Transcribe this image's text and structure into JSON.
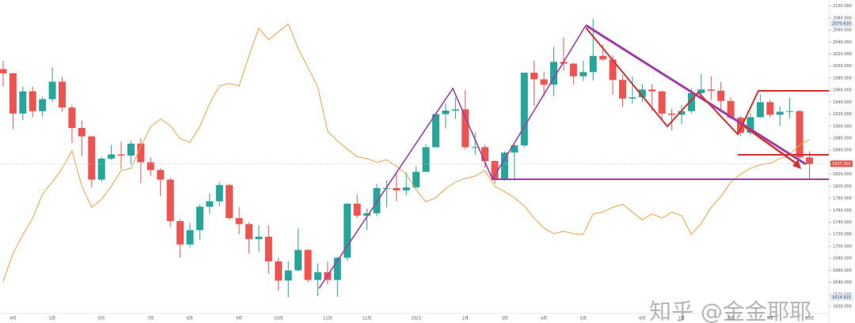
{
  "chart_data": {
    "type": "candlestick",
    "categories": [
      null,
      "4月",
      null,
      null,
      null,
      "5月",
      null,
      null,
      null,
      null,
      "6月",
      null,
      null,
      null,
      null,
      "7月",
      null,
      null,
      null,
      "8月",
      null,
      null,
      null,
      null,
      "9月",
      null,
      null,
      null,
      "10月",
      null,
      null,
      null,
      null,
      "11月",
      null,
      null,
      null,
      "12月",
      null,
      null,
      null,
      null,
      "2023",
      null,
      null,
      null,
      null,
      "2月",
      null,
      null,
      null,
      "3月",
      null,
      null,
      null,
      "4月",
      null,
      null,
      null,
      "5月",
      null,
      null,
      null,
      null,
      null,
      "6月",
      null,
      null,
      null,
      "7月",
      null,
      null,
      null,
      null,
      "8月",
      null,
      null,
      null,
      "9月",
      null,
      null,
      null,
      "10月"
    ],
    "open": [
      1995,
      1988,
      1921,
      1958,
      1925,
      1945,
      1974,
      1931,
      1897,
      1883,
      1811,
      1846,
      1853,
      1851,
      1871,
      1840,
      1827,
      1811,
      1742,
      1703,
      1727,
      1766,
      1775,
      1802,
      1747,
      1737,
      1712,
      1716,
      1675,
      1643,
      1660,
      1694,
      1644,
      1657,
      1644,
      1681,
      1771,
      1751,
      1755,
      1797,
      1797,
      1793,
      1798,
      1824,
      1865,
      1920,
      1926,
      1928,
      1865,
      1865,
      1842,
      1811,
      1856,
      1868,
      1989,
      1978,
      1969,
      2007,
      2004,
      1983,
      1990,
      2017,
      2011,
      1977,
      1946,
      1948,
      1961,
      1958,
      1921,
      1919,
      1925,
      1955,
      1961,
      1959,
      1942,
      1914,
      1889,
      1915,
      1940,
      1919,
      1924,
      1925,
      1848
    ],
    "high": [
      2009,
      1989,
      1966,
      1966,
      1949,
      1998,
      1982,
      1936,
      1909,
      1884,
      1849,
      1869,
      1874,
      1876,
      1880,
      1848,
      1830,
      1814,
      1745,
      1739,
      1770,
      1788,
      1807,
      1804,
      1765,
      1740,
      1735,
      1735,
      1681,
      1675,
      1730,
      1695,
      1672,
      1675,
      1683,
      1772,
      1786,
      1763,
      1804,
      1810,
      1824,
      1823,
      1833,
      1870,
      1922,
      1938,
      1948,
      1960,
      1890,
      1869,
      1843,
      1858,
      1870,
      1989,
      2009,
      1990,
      2032,
      2048,
      2006,
      2009,
      2079,
      2036,
      2018,
      1985,
      1983,
      1970,
      1970,
      1959,
      1929,
      1935,
      1963,
      1987,
      1983,
      1974,
      1948,
      1917,
      1922,
      1953,
      1944,
      1933,
      1947,
      1927,
      1858
    ],
    "low": [
      1966,
      1895,
      1910,
      1915,
      1916,
      1940,
      1924,
      1872,
      1850,
      1798,
      1807,
      1844,
      1828,
      1836,
      1805,
      1817,
      1784,
      1732,
      1681,
      1698,
      1711,
      1754,
      1767,
      1745,
      1720,
      1688,
      1691,
      1654,
      1626,
      1615,
      1659,
      1640,
      1617,
      1637,
      1616,
      1676,
      1747,
      1727,
      1750,
      1765,
      1775,
      1785,
      1797,
      1826,
      1867,
      1896,
      1912,
      1861,
      1852,
      1830,
      1804,
      1809,
      1809,
      1865,
      1934,
      1949,
      1950,
      1992,
      1969,
      1975,
      1976,
      2008,
      1952,
      1932,
      1938,
      1940,
      1925,
      1910,
      1893,
      1903,
      1921,
      1951,
      1943,
      1928,
      1911,
      1884,
      1885,
      1914,
      1915,
      1901,
      1913,
      1846,
      1810
    ],
    "close": [
      1988,
      1921,
      1958,
      1925,
      1945,
      1974,
      1931,
      1897,
      1883,
      1811,
      1846,
      1853,
      1851,
      1871,
      1840,
      1827,
      1811,
      1742,
      1703,
      1727,
      1766,
      1775,
      1802,
      1747,
      1737,
      1712,
      1716,
      1675,
      1643,
      1660,
      1694,
      1644,
      1657,
      1644,
      1681,
      1771,
      1751,
      1755,
      1797,
      1797,
      1793,
      1798,
      1824,
      1865,
      1920,
      1926,
      1928,
      1865,
      1865,
      1842,
      1811,
      1856,
      1868,
      1989,
      1978,
      1969,
      2007,
      2004,
      1983,
      1990,
      2017,
      2011,
      1977,
      1946,
      1948,
      1961,
      1958,
      1921,
      1919,
      1925,
      1955,
      1961,
      1959,
      1942,
      1914,
      1889,
      1915,
      1940,
      1919,
      1924,
      1925,
      1848,
      1837
    ],
    "up_color": "#26a69a",
    "down_color": "#ef5350",
    "overlay": {
      "color": "#f0a040",
      "values": [
        1642,
        1688,
        1719,
        1747,
        1787,
        1807,
        1830,
        1859,
        1800,
        1765,
        1778,
        1800,
        1826,
        1830,
        1866,
        1899,
        1912,
        1901,
        1879,
        1873,
        1899,
        1938,
        1967,
        1971,
        1967,
        2017,
        2063,
        2044,
        2057,
        2070,
        2030,
        1998,
        1965,
        1892,
        1875,
        1862,
        1849,
        1846,
        1840,
        1844,
        1833,
        1820,
        1794,
        1774,
        1781,
        1796,
        1807,
        1813,
        1817,
        1826,
        1800,
        1791,
        1781,
        1767,
        1747,
        1730,
        1721,
        1725,
        1721,
        1720,
        1754,
        1757,
        1765,
        1770,
        1757,
        1744,
        1754,
        1747,
        1757,
        1751,
        1720,
        1738,
        1765,
        1783,
        1807,
        1820,
        1830,
        1836,
        1838,
        1846,
        1853,
        1869,
        1878
      ]
    },
    "ylim": [
      1600,
      2110
    ],
    "yticks": [
      {
        "value": 1600,
        "label": "1600.000"
      },
      {
        "value": 1620,
        "label": "1620.000"
      },
      {
        "value": 1640,
        "label": "1640.000"
      },
      {
        "value": 1660,
        "label": "1660.000"
      },
      {
        "value": 1680,
        "label": "1680.000"
      },
      {
        "value": 1700,
        "label": "1700.000"
      },
      {
        "value": 1720,
        "label": "1720.000"
      },
      {
        "value": 1740,
        "label": "1740.000"
      },
      {
        "value": 1760,
        "label": "1760.000"
      },
      {
        "value": 1780,
        "label": "1780.000"
      },
      {
        "value": 1800,
        "label": "1800.000"
      },
      {
        "value": 1820,
        "label": "1820.000"
      },
      {
        "value": 1840,
        "label": "1840.000"
      },
      {
        "value": 1860,
        "label": "1860.000"
      },
      {
        "value": 1880,
        "label": "1880.000"
      },
      {
        "value": 1900,
        "label": "1900.000"
      },
      {
        "value": 1920,
        "label": "1920.000"
      },
      {
        "value": 1940,
        "label": "1940.000"
      },
      {
        "value": 1960,
        "label": "1960.000"
      },
      {
        "value": 1980,
        "label": "1980.000"
      },
      {
        "value": 2000,
        "label": "2000.000"
      },
      {
        "value": 2020,
        "label": "2020.000"
      },
      {
        "value": 2040,
        "label": "2040.000"
      },
      {
        "value": 2060,
        "label": "2060.000"
      },
      {
        "value": 2080,
        "label": "2080.000"
      },
      {
        "value": 2100,
        "label": "2100.000"
      }
    ],
    "price_labels": [
      1837.455,
      {
        "value": 2070.63,
        "label": "2070.630"
      },
      {
        "value": 1614.925,
        "label": "1614.925"
      }
    ],
    "watermark": "知乎 @金金耶耶"
  }
}
